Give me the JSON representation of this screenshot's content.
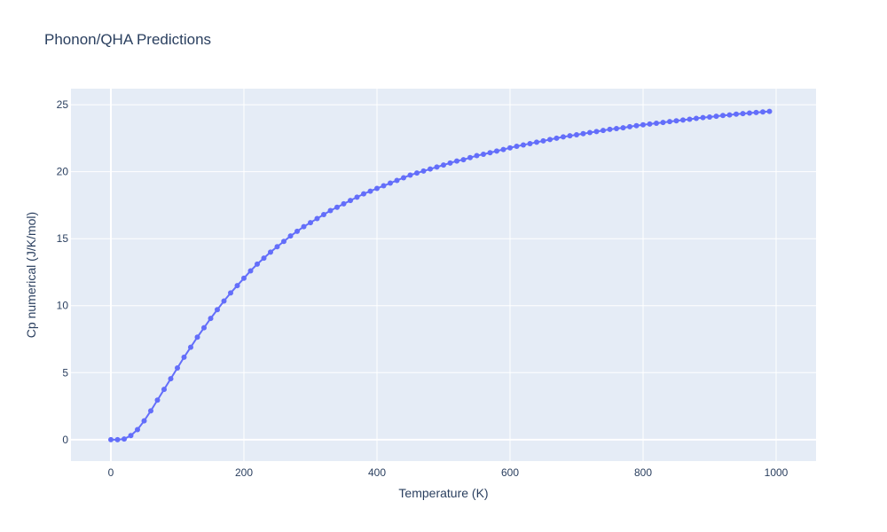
{
  "chart_data": {
    "type": "line",
    "title": "Phonon/QHA Predictions",
    "xlabel": "Temperature (K)",
    "ylabel": "Cp numerical (J/K/mol)",
    "xlim": [
      -60,
      1060
    ],
    "ylim": [
      -1.6,
      26.2
    ],
    "xticks": [
      0,
      200,
      400,
      600,
      800,
      1000
    ],
    "yticks": [
      0,
      5,
      10,
      15,
      20,
      25
    ],
    "grid": true,
    "legend": "none",
    "colors": {
      "series": "#636efa",
      "plot_bg": "#e5ecf6",
      "grid": "#ffffff",
      "text": "#2a3f5f"
    },
    "series": [
      {
        "mode": "lines+markers",
        "x": [
          0,
          10,
          20,
          30,
          40,
          50,
          60,
          70,
          80,
          90,
          100,
          110,
          120,
          130,
          140,
          150,
          160,
          170,
          180,
          190,
          200,
          210,
          220,
          230,
          240,
          250,
          260,
          270,
          280,
          290,
          300,
          310,
          320,
          330,
          340,
          350,
          360,
          370,
          380,
          390,
          400,
          410,
          420,
          430,
          440,
          450,
          460,
          470,
          480,
          490,
          500,
          510,
          520,
          530,
          540,
          550,
          560,
          570,
          580,
          590,
          600,
          610,
          620,
          630,
          640,
          650,
          660,
          670,
          680,
          690,
          700,
          710,
          720,
          730,
          740,
          750,
          760,
          770,
          780,
          790,
          800,
          810,
          820,
          830,
          840,
          850,
          860,
          870,
          880,
          890,
          900,
          910,
          920,
          930,
          940,
          950,
          960,
          970,
          980,
          990
        ],
        "y": [
          0.0,
          0.0,
          0.05,
          0.3,
          0.75,
          1.4,
          2.15,
          2.95,
          3.75,
          4.55,
          5.35,
          6.15,
          6.9,
          7.65,
          8.35,
          9.05,
          9.7,
          10.35,
          10.95,
          11.5,
          12.05,
          12.6,
          13.1,
          13.55,
          14.0,
          14.4,
          14.8,
          15.2,
          15.55,
          15.9,
          16.2,
          16.5,
          16.8,
          17.1,
          17.35,
          17.6,
          17.85,
          18.1,
          18.35,
          18.55,
          18.75,
          18.95,
          19.15,
          19.35,
          19.55,
          19.75,
          19.9,
          20.05,
          20.2,
          20.35,
          20.5,
          20.65,
          20.8,
          20.9,
          21.05,
          21.2,
          21.3,
          21.42,
          21.54,
          21.66,
          21.78,
          21.9,
          22.0,
          22.1,
          22.2,
          22.3,
          22.4,
          22.5,
          22.6,
          22.68,
          22.76,
          22.84,
          22.92,
          23.0,
          23.08,
          23.16,
          23.22,
          23.28,
          23.36,
          23.44,
          23.5,
          23.56,
          23.62,
          23.68,
          23.74,
          23.8,
          23.86,
          23.92,
          23.98,
          24.04,
          24.08,
          24.14,
          24.2,
          24.24,
          24.3,
          24.34,
          24.38,
          24.42,
          24.46,
          24.5
        ]
      }
    ]
  }
}
